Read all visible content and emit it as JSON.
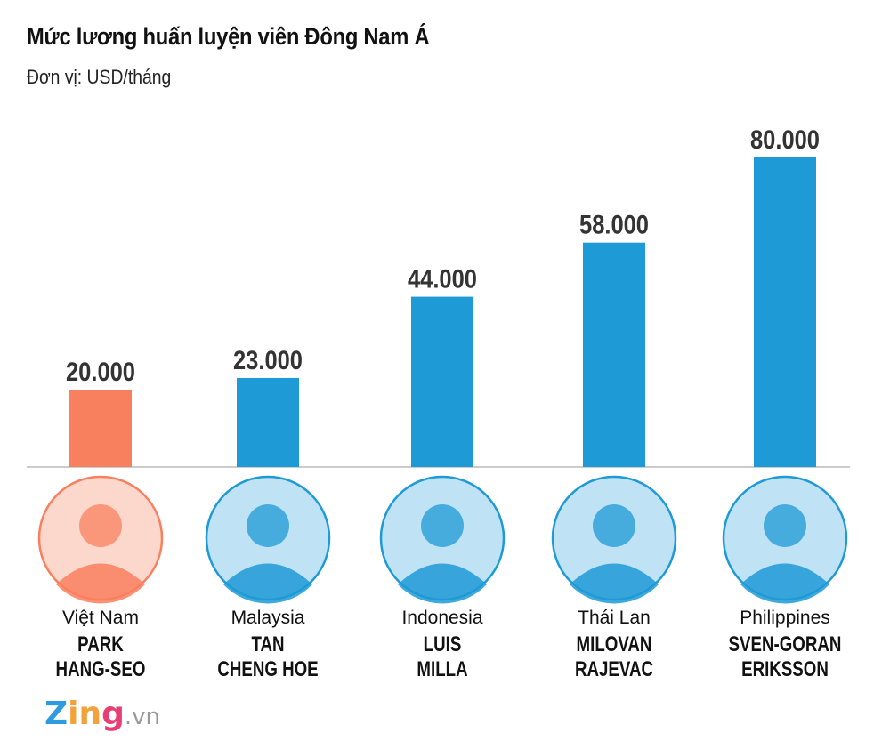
{
  "title": "Mức lương huấn luyện viên Đông Nam Á",
  "subtitle": "Đơn vị: USD/tháng",
  "logo": {
    "text": "Zing",
    "suffix": ".vn"
  },
  "chart_data": {
    "type": "bar",
    "title": "Mức lương huấn luyện viên Đông Nam Á",
    "ylabel": "Đơn vị: USD/tháng",
    "categories": [
      "Việt Nam",
      "Malaysia",
      "Indonesia",
      "Thái Lan",
      "Philippines"
    ],
    "coaches": [
      [
        "PARK",
        "HANG-SEO"
      ],
      [
        "TAN",
        "CHENG HOE"
      ],
      [
        "LUIS",
        "MILLA"
      ],
      [
        "MILOVAN",
        "RAJEVAC"
      ],
      [
        "SVEN-GORAN",
        "ERIKSSON"
      ]
    ],
    "values": [
      20000,
      23000,
      44000,
      58000,
      80000
    ],
    "value_labels": [
      "20.000",
      "23.000",
      "44.000",
      "58.000",
      "80.000"
    ],
    "colors": [
      "#F9805E",
      "#1E9AD6",
      "#1E9AD6",
      "#1E9AD6",
      "#1E9AD6"
    ],
    "ylim": [
      0,
      80000
    ],
    "grid": false
  }
}
